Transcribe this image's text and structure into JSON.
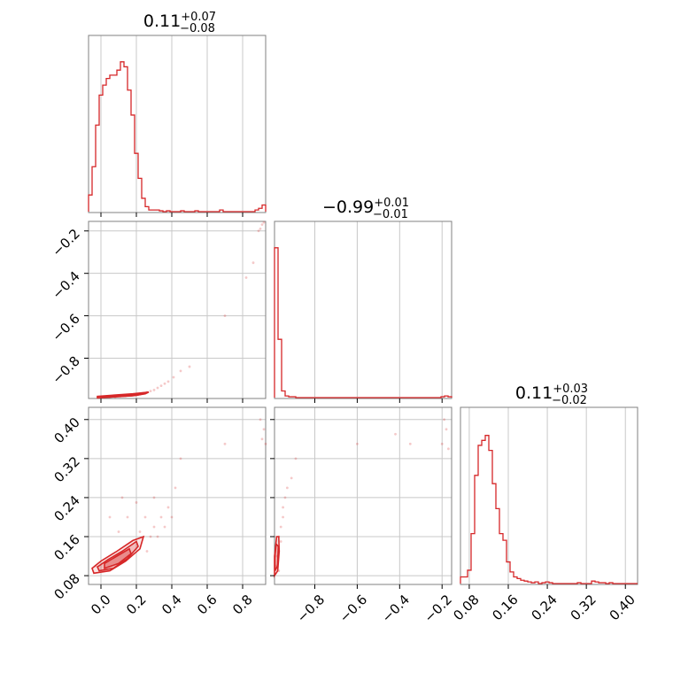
{
  "chart_data": {
    "type": "corner",
    "colors": {
      "accent": "#d62728",
      "grid": "#c8c8c8",
      "frame": "#808080"
    },
    "grid": true,
    "parameters": [
      {
        "id": "p0",
        "range": [
          -0.07,
          0.93
        ],
        "ticks": [
          0.0,
          0.2,
          0.4,
          0.6,
          0.8
        ],
        "tick_labels": [
          "0.0",
          "0.2",
          "0.4",
          "0.6",
          "0.8"
        ]
      },
      {
        "id": "p1",
        "range": [
          -0.99,
          -0.155
        ],
        "ticks": [
          -0.8,
          -0.6,
          -0.4,
          -0.2
        ],
        "tick_labels": [
          "-0.8",
          "-0.6",
          "-0.4",
          "-0.2"
        ]
      },
      {
        "id": "p2",
        "range": [
          0.062,
          0.425
        ],
        "ticks": [
          0.08,
          0.16,
          0.24,
          0.32,
          0.4
        ],
        "tick_labels": [
          "0.08",
          "0.16",
          "0.24",
          "0.32",
          "0.40"
        ]
      }
    ],
    "titles": [
      {
        "value": "0.11",
        "plus": "+0.07",
        "minus": "−0.08"
      },
      {
        "value": "−0.99",
        "plus": "+0.01",
        "minus": "−0.01"
      },
      {
        "value": "0.11",
        "plus": "+0.03",
        "minus": "−0.02"
      }
    ],
    "histograms": [
      {
        "param": 0,
        "counts": [
          0.1,
          0.27,
          0.52,
          0.7,
          0.76,
          0.8,
          0.82,
          0.82,
          0.85,
          0.9,
          0.87,
          0.73,
          0.58,
          0.35,
          0.2,
          0.08,
          0.03,
          0.01,
          0.01,
          0.01,
          0.005,
          0,
          0.005,
          0,
          0,
          0,
          0.005,
          0,
          0,
          0,
          0.005,
          0,
          0,
          0,
          0,
          0,
          0,
          0.01,
          0,
          0,
          0,
          0,
          0,
          0,
          0,
          0,
          0,
          0.01,
          0.02,
          0.04
        ]
      },
      {
        "param": 1,
        "counts": [
          0.9,
          0.35,
          0.04,
          0.01,
          0.005,
          0.005,
          0,
          0,
          0,
          0,
          0,
          0,
          0,
          0,
          0,
          0,
          0,
          0,
          0,
          0,
          0,
          0,
          0,
          0,
          0,
          0,
          0,
          0,
          0,
          0,
          0,
          0,
          0,
          0,
          0,
          0,
          0,
          0,
          0,
          0,
          0,
          0,
          0,
          0,
          0,
          0,
          0,
          0.005,
          0.01,
          0.005
        ]
      },
      {
        "param": 2,
        "counts": [
          0.04,
          0.04,
          0.08,
          0.3,
          0.65,
          0.83,
          0.86,
          0.89,
          0.8,
          0.6,
          0.45,
          0.3,
          0.26,
          0.13,
          0.07,
          0.04,
          0.03,
          0.02,
          0.015,
          0.01,
          0.005,
          0.01,
          0,
          0.005,
          0.01,
          0.005,
          0,
          0,
          0,
          0,
          0,
          0,
          0,
          0.005,
          0,
          0,
          0,
          0.015,
          0.01,
          0.005,
          0.005,
          0,
          0.005,
          0,
          0,
          0,
          0,
          0,
          0,
          0
        ]
      }
    ],
    "scatter_panels": [
      {
        "x_param": 0,
        "y_param": 1,
        "points": [
          [
            0.02,
            -0.985
          ],
          [
            0.05,
            -0.982
          ],
          [
            0.08,
            -0.984
          ],
          [
            0.11,
            -0.98
          ],
          [
            0.14,
            -0.978
          ],
          [
            0.17,
            -0.976
          ],
          [
            0.2,
            -0.972
          ],
          [
            0.22,
            -0.97
          ],
          [
            0.24,
            -0.965
          ],
          [
            0.26,
            -0.96
          ],
          [
            0.28,
            -0.955
          ],
          [
            0.3,
            -0.95
          ],
          [
            0.32,
            -0.94
          ],
          [
            0.34,
            -0.93
          ],
          [
            0.36,
            -0.92
          ],
          [
            0.38,
            -0.91
          ],
          [
            0.41,
            -0.89
          ],
          [
            0.45,
            -0.86
          ],
          [
            0.5,
            -0.84
          ],
          [
            0.7,
            -0.6
          ],
          [
            0.82,
            -0.42
          ],
          [
            0.86,
            -0.35
          ],
          [
            0.9,
            -0.19
          ],
          [
            0.91,
            -0.17
          ],
          [
            0.92,
            -0.16
          ],
          [
            0.89,
            -0.2
          ]
        ],
        "contours": [
          [
            [
              -0.02,
              -0.987
            ],
            [
              0.08,
              -0.982
            ],
            [
              0.18,
              -0.977
            ],
            [
              0.25,
              -0.968
            ],
            [
              0.27,
              -0.96
            ],
            [
              0.18,
              -0.968
            ],
            [
              0.06,
              -0.975
            ],
            [
              -0.02,
              -0.98
            ]
          ],
          [
            [
              0.0,
              -0.986
            ],
            [
              0.1,
              -0.981
            ],
            [
              0.2,
              -0.975
            ],
            [
              0.24,
              -0.968
            ],
            [
              0.16,
              -0.971
            ],
            [
              0.05,
              -0.977
            ],
            [
              0.0,
              -0.981
            ]
          ]
        ]
      },
      {
        "x_param": 0,
        "y_param": 2,
        "points": [
          [
            0.3,
            0.18
          ],
          [
            0.34,
            0.2
          ],
          [
            0.38,
            0.22
          ],
          [
            0.42,
            0.26
          ],
          [
            0.45,
            0.32
          ],
          [
            0.3,
            0.24
          ],
          [
            0.25,
            0.2
          ],
          [
            0.2,
            0.23
          ],
          [
            0.15,
            0.2
          ],
          [
            0.32,
            0.16
          ],
          [
            0.36,
            0.18
          ],
          [
            0.28,
            0.16
          ],
          [
            0.4,
            0.2
          ],
          [
            0.7,
            0.35
          ],
          [
            0.9,
            0.4
          ],
          [
            0.92,
            0.38
          ],
          [
            0.91,
            0.36
          ],
          [
            0.93,
            0.35
          ],
          [
            0.05,
            0.2
          ],
          [
            0.1,
            0.17
          ],
          [
            -0.03,
            0.1
          ],
          [
            0.12,
            0.24
          ],
          [
            0.22,
            0.17
          ],
          [
            0.26,
            0.13
          ]
        ],
        "contours": [
          [
            [
              -0.04,
              0.085
            ],
            [
              0.05,
              0.09
            ],
            [
              0.14,
              0.11
            ],
            [
              0.22,
              0.135
            ],
            [
              0.24,
              0.16
            ],
            [
              0.18,
              0.152
            ],
            [
              0.09,
              0.13
            ],
            [
              0.0,
              0.11
            ],
            [
              -0.05,
              0.095
            ]
          ],
          [
            [
              -0.01,
              0.09
            ],
            [
              0.07,
              0.095
            ],
            [
              0.15,
              0.115
            ],
            [
              0.21,
              0.14
            ],
            [
              0.2,
              0.15
            ],
            [
              0.12,
              0.13
            ],
            [
              0.04,
              0.113
            ],
            [
              -0.02,
              0.098
            ]
          ],
          [
            [
              0.02,
              0.095
            ],
            [
              0.1,
              0.105
            ],
            [
              0.17,
              0.125
            ],
            [
              0.16,
              0.135
            ],
            [
              0.09,
              0.12
            ],
            [
              0.02,
              0.105
            ]
          ]
        ]
      },
      {
        "x_param": 1,
        "y_param": 2,
        "points": [
          [
            -0.98,
            0.1
          ],
          [
            -0.98,
            0.12
          ],
          [
            -0.97,
            0.13
          ],
          [
            -0.97,
            0.16
          ],
          [
            -0.96,
            0.18
          ],
          [
            -0.95,
            0.2
          ],
          [
            -0.95,
            0.22
          ],
          [
            -0.94,
            0.24
          ],
          [
            -0.93,
            0.26
          ],
          [
            -0.91,
            0.28
          ],
          [
            -0.89,
            0.32
          ],
          [
            -0.6,
            0.35
          ],
          [
            -0.42,
            0.37
          ],
          [
            -0.35,
            0.35
          ],
          [
            -0.19,
            0.4
          ],
          [
            -0.18,
            0.38
          ],
          [
            -0.17,
            0.34
          ],
          [
            -0.2,
            0.35
          ],
          [
            -0.97,
            0.09
          ],
          [
            -0.96,
            0.15
          ]
        ],
        "contours": [
          [
            [
              -0.99,
              0.08
            ],
            [
              -0.975,
              0.09
            ],
            [
              -0.968,
              0.13
            ],
            [
              -0.97,
              0.16
            ],
            [
              -0.98,
              0.16
            ],
            [
              -0.99,
              0.12
            ]
          ],
          [
            [
              -0.988,
              0.09
            ],
            [
              -0.976,
              0.1
            ],
            [
              -0.972,
              0.14
            ],
            [
              -0.982,
              0.145
            ],
            [
              -0.988,
              0.12
            ]
          ]
        ]
      }
    ]
  }
}
